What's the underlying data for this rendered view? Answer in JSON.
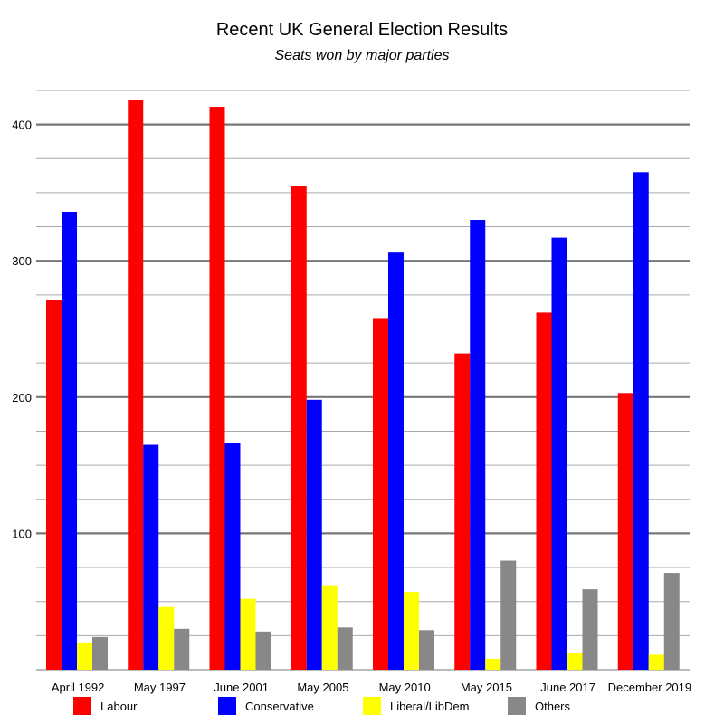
{
  "chart_data": {
    "type": "bar",
    "title": "Recent UK General Election Results",
    "subtitle": "Seats won by major parties",
    "xlabel": "",
    "ylabel": "",
    "ylim": [
      0,
      425
    ],
    "yticks": [
      100,
      200,
      300,
      400
    ],
    "grid": "horizontal",
    "legend_position": "bottom",
    "categories": [
      "April 1992",
      "May 1997",
      "June 2001",
      "May 2005",
      "May 2010",
      "May 2015",
      "June 2017",
      "December 2019"
    ],
    "series": [
      {
        "name": "Labour",
        "color": "#ff0000",
        "values": [
          271,
          418,
          413,
          355,
          258,
          232,
          262,
          203
        ]
      },
      {
        "name": "Conservative",
        "color": "#0000ff",
        "values": [
          336,
          165,
          166,
          198,
          306,
          330,
          317,
          365
        ]
      },
      {
        "name": "Liberal/LibDem",
        "color": "#ffff00",
        "values": [
          20,
          46,
          52,
          62,
          57,
          8,
          12,
          11
        ]
      },
      {
        "name": "Others",
        "color": "#888888",
        "values": [
          24,
          30,
          28,
          31,
          29,
          80,
          59,
          71
        ]
      }
    ]
  }
}
